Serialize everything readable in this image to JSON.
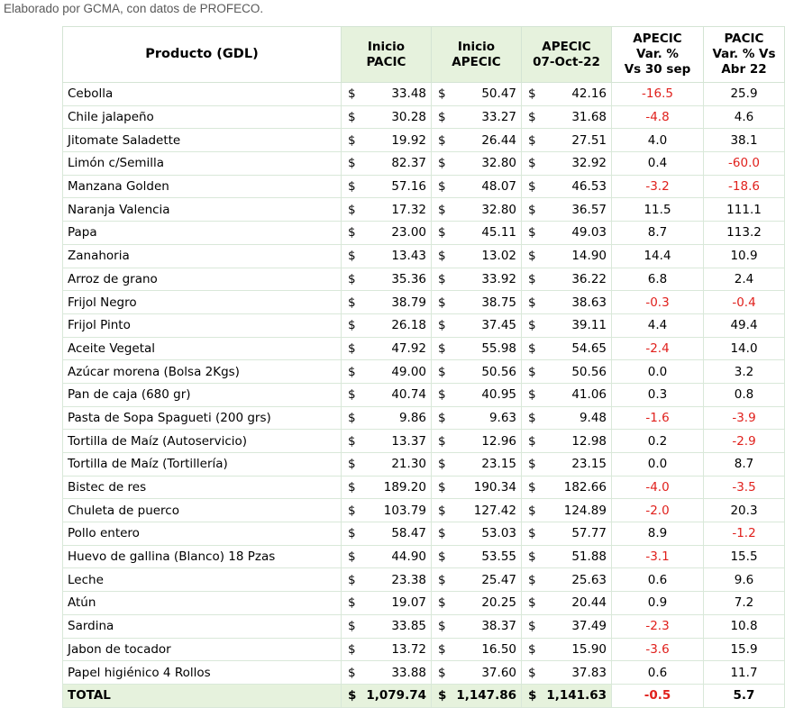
{
  "caption": "Elaborado por GCMA, con datos de PROFECO.",
  "table": {
    "headers": {
      "producto": "Producto (GDL)",
      "inicio_pacic": [
        "Inicio",
        "PACIC"
      ],
      "inicio_apecic": [
        "Inicio",
        "APECIC"
      ],
      "apecic_fecha": [
        "APECIC",
        "07-Oct-22"
      ],
      "var_apecic": [
        "APECIC",
        "Var. %",
        "Vs  30 sep"
      ],
      "var_pacic": [
        "PACIC",
        "Var. % Vs",
        "Abr 22"
      ]
    },
    "currency_symbol": "$",
    "rows": [
      {
        "producto": "Cebolla",
        "inicio_pacic": "33.48",
        "inicio_apecic": "50.47",
        "apecic": "42.16",
        "var_apecic": "-16.5",
        "var_pacic": "25.9"
      },
      {
        "producto": "Chile jalapeño",
        "inicio_pacic": "30.28",
        "inicio_apecic": "33.27",
        "apecic": "31.68",
        "var_apecic": "-4.8",
        "var_pacic": "4.6"
      },
      {
        "producto": "Jitomate Saladette",
        "inicio_pacic": "19.92",
        "inicio_apecic": "26.44",
        "apecic": "27.51",
        "var_apecic": "4.0",
        "var_pacic": "38.1"
      },
      {
        "producto": "Limón c/Semilla",
        "inicio_pacic": "82.37",
        "inicio_apecic": "32.80",
        "apecic": "32.92",
        "var_apecic": "0.4",
        "var_pacic": "-60.0"
      },
      {
        "producto": "Manzana Golden",
        "inicio_pacic": "57.16",
        "inicio_apecic": "48.07",
        "apecic": "46.53",
        "var_apecic": "-3.2",
        "var_pacic": "-18.6"
      },
      {
        "producto": "Naranja Valencia",
        "inicio_pacic": "17.32",
        "inicio_apecic": "32.80",
        "apecic": "36.57",
        "var_apecic": "11.5",
        "var_pacic": "111.1"
      },
      {
        "producto": "Papa",
        "inicio_pacic": "23.00",
        "inicio_apecic": "45.11",
        "apecic": "49.03",
        "var_apecic": "8.7",
        "var_pacic": "113.2"
      },
      {
        "producto": "Zanahoria",
        "inicio_pacic": "13.43",
        "inicio_apecic": "13.02",
        "apecic": "14.90",
        "var_apecic": "14.4",
        "var_pacic": "10.9"
      },
      {
        "producto": "Arroz de grano",
        "inicio_pacic": "35.36",
        "inicio_apecic": "33.92",
        "apecic": "36.22",
        "var_apecic": "6.8",
        "var_pacic": "2.4"
      },
      {
        "producto": "Frijol Negro",
        "inicio_pacic": "38.79",
        "inicio_apecic": "38.75",
        "apecic": "38.63",
        "var_apecic": "-0.3",
        "var_pacic": "-0.4"
      },
      {
        "producto": "Frijol Pinto",
        "inicio_pacic": "26.18",
        "inicio_apecic": "37.45",
        "apecic": "39.11",
        "var_apecic": "4.4",
        "var_pacic": "49.4"
      },
      {
        "producto": "Aceite Vegetal",
        "inicio_pacic": "47.92",
        "inicio_apecic": "55.98",
        "apecic": "54.65",
        "var_apecic": "-2.4",
        "var_pacic": "14.0"
      },
      {
        "producto": "Azúcar morena (Bolsa 2Kgs)",
        "inicio_pacic": "49.00",
        "inicio_apecic": "50.56",
        "apecic": "50.56",
        "var_apecic": "0.0",
        "var_pacic": "3.2"
      },
      {
        "producto": "Pan de caja (680 gr)",
        "inicio_pacic": "40.74",
        "inicio_apecic": "40.95",
        "apecic": "41.06",
        "var_apecic": "0.3",
        "var_pacic": "0.8"
      },
      {
        "producto": "Pasta de Sopa Spagueti (200 grs)",
        "inicio_pacic": "9.86",
        "inicio_apecic": "9.63",
        "apecic": "9.48",
        "var_apecic": "-1.6",
        "var_pacic": "-3.9"
      },
      {
        "producto": "Tortilla de Maíz (Autoservicio)",
        "inicio_pacic": "13.37",
        "inicio_apecic": "12.96",
        "apecic": "12.98",
        "var_apecic": "0.2",
        "var_pacic": "-2.9"
      },
      {
        "producto": "Tortilla de Maíz (Tortillería)",
        "inicio_pacic": "21.30",
        "inicio_apecic": "23.15",
        "apecic": "23.15",
        "var_apecic": "0.0",
        "var_pacic": "8.7"
      },
      {
        "producto": "Bistec de res",
        "inicio_pacic": "189.20",
        "inicio_apecic": "190.34",
        "apecic": "182.66",
        "var_apecic": "-4.0",
        "var_pacic": "-3.5"
      },
      {
        "producto": "Chuleta de puerco",
        "inicio_pacic": "103.79",
        "inicio_apecic": "127.42",
        "apecic": "124.89",
        "var_apecic": "-2.0",
        "var_pacic": "20.3"
      },
      {
        "producto": "Pollo entero",
        "inicio_pacic": "58.47",
        "inicio_apecic": "53.03",
        "apecic": "57.77",
        "var_apecic": "8.9",
        "var_pacic": "-1.2"
      },
      {
        "producto": "Huevo de gallina (Blanco) 18 Pzas",
        "inicio_pacic": "44.90",
        "inicio_apecic": "53.55",
        "apecic": "51.88",
        "var_apecic": "-3.1",
        "var_pacic": "15.5"
      },
      {
        "producto": "Leche",
        "inicio_pacic": "23.38",
        "inicio_apecic": "25.47",
        "apecic": "25.63",
        "var_apecic": "0.6",
        "var_pacic": "9.6"
      },
      {
        "producto": "Atún",
        "inicio_pacic": "19.07",
        "inicio_apecic": "20.25",
        "apecic": "20.44",
        "var_apecic": "0.9",
        "var_pacic": "7.2"
      },
      {
        "producto": "Sardina",
        "inicio_pacic": "33.85",
        "inicio_apecic": "38.37",
        "apecic": "37.49",
        "var_apecic": "-2.3",
        "var_pacic": "10.8"
      },
      {
        "producto": "Jabon de tocador",
        "inicio_pacic": "13.72",
        "inicio_apecic": "16.50",
        "apecic": "15.90",
        "var_apecic": "-3.6",
        "var_pacic": "15.9"
      },
      {
        "producto": "Papel higiénico 4 Rollos",
        "inicio_pacic": "33.88",
        "inicio_apecic": "37.60",
        "apecic": "37.83",
        "var_apecic": "0.6",
        "var_pacic": "11.7"
      }
    ],
    "total": {
      "producto": "TOTAL",
      "inicio_pacic": "1,079.74",
      "inicio_apecic": "1,147.86",
      "apecic": "1,141.63",
      "var_apecic": "-0.5",
      "var_pacic": "5.7"
    }
  },
  "colors": {
    "negative": "#e0201c",
    "header_green": "#e6f2dd"
  }
}
